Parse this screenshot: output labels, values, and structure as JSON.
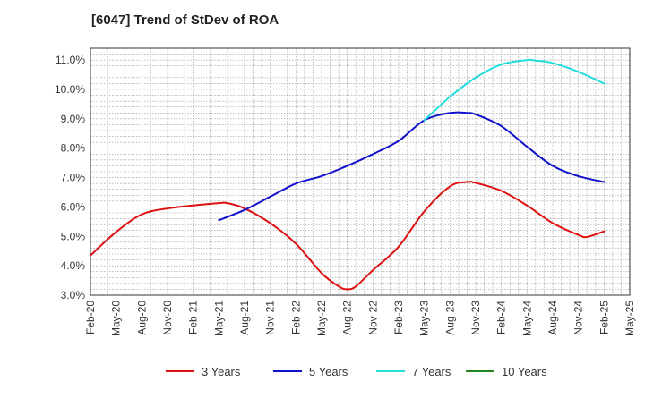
{
  "chart_data": {
    "type": "line",
    "title": "[6047]  Trend of StDev of ROA",
    "xlabel": "",
    "ylabel": "",
    "x_ticks": [
      "Feb-20",
      "May-20",
      "Aug-20",
      "Nov-20",
      "Feb-21",
      "May-21",
      "Aug-21",
      "Nov-21",
      "Feb-22",
      "May-22",
      "Aug-22",
      "Nov-22",
      "Feb-23",
      "May-23",
      "Aug-23",
      "Nov-23",
      "Feb-24",
      "May-24",
      "Aug-24",
      "Nov-24",
      "Feb-25",
      "May-25"
    ],
    "y_ticks": [
      "3.0%",
      "4.0%",
      "5.0%",
      "6.0%",
      "7.0%",
      "8.0%",
      "9.0%",
      "10.0%",
      "11.0%"
    ],
    "ylim": [
      3.0,
      11.4
    ],
    "y_unit": "%",
    "grid": true,
    "legend_position": "bottom",
    "series": [
      {
        "name": "3 Years",
        "color": "#dd1111",
        "x": [
          "Feb-20",
          "May-20",
          "Aug-20",
          "Nov-20",
          "Feb-21",
          "May-21",
          "Jun-21",
          "Aug-21",
          "Nov-21",
          "Feb-22",
          "May-22",
          "Jul-22",
          "Aug-22",
          "Sep-22",
          "Nov-22",
          "Feb-23",
          "May-23",
          "Aug-23",
          "Oct-23",
          "Nov-23",
          "Feb-24",
          "May-24",
          "Aug-24",
          "Nov-24",
          "Dec-24",
          "Feb-25"
        ],
        "values": [
          4.35,
          5.15,
          5.75,
          5.95,
          6.05,
          6.13,
          6.13,
          5.95,
          5.45,
          4.75,
          3.75,
          3.3,
          3.2,
          3.3,
          3.85,
          4.65,
          5.85,
          6.7,
          6.85,
          6.82,
          6.55,
          6.05,
          5.45,
          5.05,
          4.98,
          5.17
        ]
      },
      {
        "name": "5 Years",
        "color": "#1111cc",
        "x": [
          "May-21",
          "Aug-21",
          "Nov-21",
          "Feb-22",
          "May-22",
          "Aug-22",
          "Nov-22",
          "Feb-23",
          "May-23",
          "Aug-23",
          "Oct-23",
          "Nov-23",
          "Feb-24",
          "May-24",
          "Aug-24",
          "Nov-24",
          "Feb-25"
        ],
        "values": [
          5.55,
          5.9,
          6.35,
          6.8,
          7.05,
          7.4,
          7.8,
          8.25,
          8.95,
          9.2,
          9.2,
          9.15,
          8.75,
          8.05,
          7.4,
          7.05,
          6.85
        ]
      },
      {
        "name": "7 Years",
        "color": "#22dddd",
        "x": [
          "May-23",
          "Aug-23",
          "Nov-23",
          "Feb-24",
          "May-24",
          "Jun-24",
          "Aug-24",
          "Nov-24",
          "Feb-25"
        ],
        "values": [
          8.95,
          9.75,
          10.4,
          10.85,
          11.0,
          10.98,
          10.9,
          10.6,
          10.2
        ]
      },
      {
        "name": "10 Years",
        "color": "#228822",
        "x": [],
        "values": []
      }
    ]
  }
}
